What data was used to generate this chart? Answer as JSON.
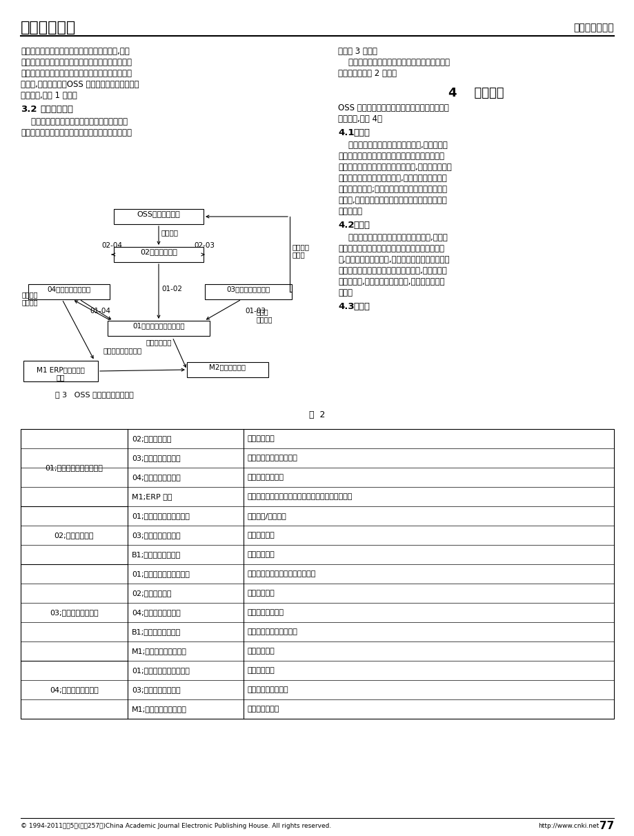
{
  "title_left": "有线电视技术",
  "title_right": "网络管理与维护",
  "page_num": "77",
  "footer_left": "© 1994-2011年第5期(总第257期)China Academic Journal Electronic Publishing House. All rights reserved.",
  "footer_right": "http://www.cnki.net",
  "left_col_lines": [
    "规范需要满足各种数据需求对数据组织的要求,并独",
    "立于具体的数据模型和数据分布。企业数据分类规范",
    "还要有利于数据的维护和扩充。数据分类定义数据主",
    "题分析,主题域分析。OSS 系统的数据主要是以资源",
    "数据为主,如表 1 所示。"
  ],
  "sec32_label": "3.2",
  "sec32_title": "数据集成关系",
  "sec32_body": [
    "    数据集成关系定义数据主题和应用系统的各种",
    "关系。有线电视运营支撑系统功能架构的数据集成关"
  ],
  "right_top_lines": [
    "系如图 3 所示。",
    "    各信息流所对应的源系统和目标系统、接口内容",
    "等详细信息如表 2 所示。"
  ],
  "sec4_title": "4    软件架构",
  "sec4_intro": [
    "OSS 系统软件应用架构分为表现层、逻辑层、数",
    "据层三层,如图 4。"
  ],
  "sec41_label": "4.1",
  "sec41_title": "表现层",
  "sec41_body": [
    "    表现层是实现人机数据交换的平台,分为图形用",
    "户接口和接入服务。图形用户接口为系统使用者角",
    "色、运行维护者角色、管理者角色等,提供标准化、可",
    "视化、多样化的图形用户接口,实现对业务逻辑、功",
    "能的使用与共享;接入服务向业务逻辑层提供一组接",
    "口服务,业务逻辑层通过接口服务完成与外部系统的",
    "数据交换。"
  ],
  "sec42_label": "4.2",
  "sec42_title": "逻辑层",
  "sec42_body": [
    "    业务逻辑层是系统业务处理的逻辑平台,它通过",
    "对数据核心层服务子层原子服务的调用访问业务数",
    "据,实现不同的功能模块,满足不同的业务需求。业务",
    "逻辑层由若干业务函数和业务过程组成,为接入层提",
    "供业务服务,实现业务逻辑的共享,完成相应的业务",
    "功能。"
  ],
  "sec43_label": "4.3",
  "sec43_title": "数据层",
  "fig3_caption": "图 3   OSS 系统数据集成关系图",
  "table2_title": "表  2",
  "table2_data": [
    [
      "01;综合网络资源管理系统",
      "02;服务开通系统",
      "资源配置信息"
    ],
    [
      "01;综合网络资源管理系统",
      "03;综合运维管理系统",
      "地理信息、资源目录信息"
    ],
    [
      "01;综合网络资源管理系统",
      "04;工程项目管理系统",
      "工程资源信息录入"
    ],
    [
      "01;综合网络资源管理系统",
      "M1;ERP 系统",
      "资产信息、服务与网络规划相关投资预算及成本信息"
    ],
    [
      "02;服务开通系统",
      "01;综合网络资源管理系统",
      "资源需求/指派信息"
    ],
    [
      "02;服务开通系统",
      "03;综合运维管理系统",
      "服务配置信息"
    ],
    [
      "02;服务开通系统",
      "B1;客户关系管理系统",
      "订单竣工信息"
    ],
    [
      "03;综合运维管理系统",
      "01;综合网络资源管理系统",
      "施工结果信息、历史事件处理信息"
    ],
    [
      "03;综合运维管理系统",
      "02;服务开通系统",
      "施工结果信息"
    ],
    [
      "03;综合运维管理系统",
      "04;工程项目管理系统",
      "维护工程竣工信息"
    ],
    [
      "03;综合运维管理系统",
      "B1;客户关系管理系统",
      "故障处理、施工结果信息"
    ],
    [
      "03;综合运维管理系统",
      "M1;采购与仓储管理系统",
      "物资需求信息"
    ],
    [
      "04;工程项目管理系统",
      "01;综合网络资源管理系统",
      "辅助规划设计"
    ],
    [
      "04;工程项目管理系统",
      "03;综合运维管理系统",
      "网络维护计划及施工"
    ],
    [
      "04;工程项目管理系统",
      "M1;采购与仓储管理系统",
      "材料申购及领用"
    ]
  ],
  "table2_groups": [
    {
      "label": "01;综合网络资源管理系统",
      "rows": 4
    },
    {
      "label": "02;服务开通系统",
      "rows": 3
    },
    {
      "label": "03;综合运维管理系统",
      "rows": 5
    },
    {
      "label": "04;工程项目管理系统",
      "rows": 3
    }
  ]
}
